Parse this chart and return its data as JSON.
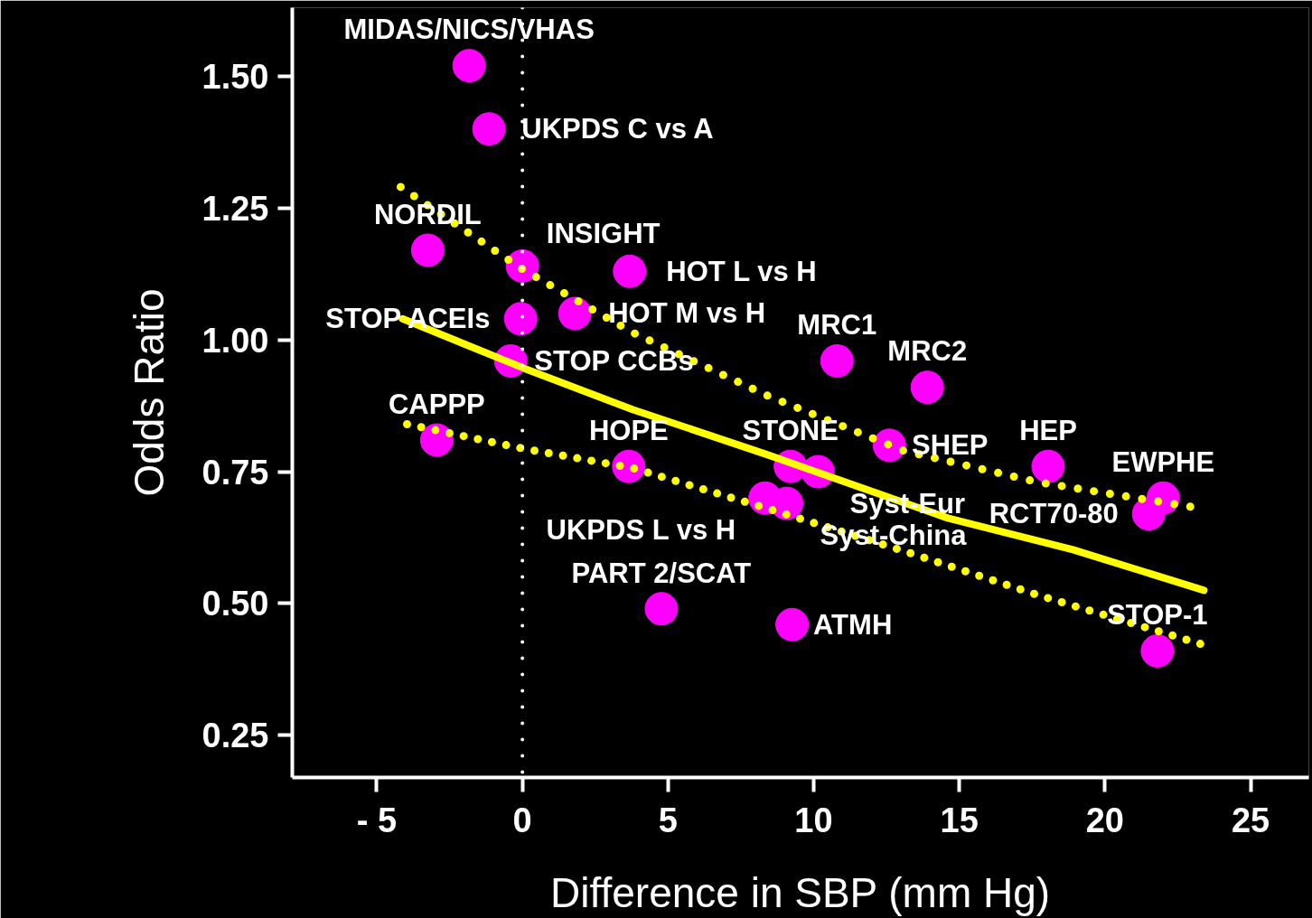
{
  "chart_data": {
    "type": "scatter",
    "xlabel": "Difference in SBP (mm Hg)",
    "ylabel": "Odds Ratio",
    "xlim": [
      -7.9,
      27.0
    ],
    "ylim": [
      0.17,
      1.63
    ],
    "xticks": [
      {
        "value": -5,
        "label": "- 5"
      },
      0,
      5,
      10,
      15,
      20,
      25
    ],
    "yticks": [
      {
        "value": 0.25,
        "label": "0.25"
      },
      {
        "value": 0.5,
        "label": "0.50"
      },
      {
        "value": 0.75,
        "label": "0.75"
      },
      {
        "value": 1.0,
        "label": "1.00"
      },
      {
        "value": 1.25,
        "label": "1.25"
      },
      {
        "value": 1.5,
        "label": "1.50"
      }
    ],
    "grid": false,
    "series": [
      {
        "color": "#ff00ff",
        "marker": "circle",
        "x": [
          -1.83,
          -1.15,
          -3.25,
          0,
          3.68,
          -0.06,
          1.8,
          -0.4,
          10.8,
          13.9,
          -2.94,
          3.65,
          9.2,
          10.15,
          12.6,
          18.05,
          8.33,
          9.07,
          22.0,
          21.5,
          4.77,
          9.26,
          21.8
        ],
        "values": [
          1.52,
          1.4,
          1.17,
          1.14,
          1.13,
          1.04,
          1.05,
          0.96,
          0.96,
          0.91,
          0.81,
          0.76,
          0.76,
          0.75,
          0.8,
          0.76,
          0.7,
          0.69,
          0.7,
          0.67,
          0.49,
          0.46,
          0.41
        ]
      },
      {
        "type": "line",
        "color": "#ffff00",
        "line_style": "solid",
        "x": [
          -4.12,
          0.06,
          3.78,
          8.42,
          14.6,
          18.9,
          23.4
        ],
        "values": [
          1.04,
          0.946,
          0.868,
          0.782,
          0.662,
          0.602,
          0.525
        ]
      },
      {
        "type": "line",
        "color": "#ffff00",
        "line_style": "dotted",
        "x": [
          -4.18,
          0,
          3.78,
          8.42,
          13.07,
          17.7,
          23.0
        ],
        "values": [
          1.29,
          1.134,
          1.014,
          0.894,
          0.79,
          0.73,
          0.683
        ]
      },
      {
        "type": "line",
        "color": "#ffff00",
        "line_style": "dotted",
        "x": [
          -3.96,
          0,
          3.78,
          8.42,
          13.07,
          17.7,
          23.3
        ],
        "values": [
          0.84,
          0.794,
          0.757,
          0.68,
          0.6,
          0.516,
          0.423
        ]
      }
    ],
    "ref_lines": [
      {
        "axis": "x",
        "value": 0,
        "color": "#ffffff",
        "line_style": "dotted"
      }
    ],
    "annotations": [
      {
        "text": "MIDAS/NICS/VHAS",
        "x": -1.83,
        "y": 1.52
      },
      {
        "text": "UKPDS C vs A",
        "x": -1.15,
        "y": 1.4
      },
      {
        "text": "NORDIL",
        "x": -3.25,
        "y": 1.17
      },
      {
        "text": "INSIGHT",
        "x": 0,
        "y": 1.14
      },
      {
        "text": "HOT L vs H",
        "x": 3.68,
        "y": 1.13
      },
      {
        "text": "STOP ACEIs",
        "x": -0.06,
        "y": 1.04
      },
      {
        "text": "HOT M vs H",
        "x": 1.8,
        "y": 1.05
      },
      {
        "text": "MRC1",
        "x": 10.8,
        "y": 0.96
      },
      {
        "text": "MRC2",
        "x": 13.9,
        "y": 0.91
      },
      {
        "text": "STOP CCBs",
        "x": -0.4,
        "y": 0.96
      },
      {
        "text": "SHEP",
        "x": 12.6,
        "y": 0.8
      },
      {
        "text": "HEP",
        "x": 18.05,
        "y": 0.76
      },
      {
        "text": "STONE",
        "x": 9.2,
        "y": 0.76
      },
      {
        "text": "HOPE",
        "x": 3.65,
        "y": 0.76
      },
      {
        "text": "EWPHE",
        "x": 22.0,
        "y": 0.7
      },
      {
        "text": "CAPPP",
        "x": -2.94,
        "y": 0.81
      },
      {
        "text": "Syst-Eur",
        "x": 10.15,
        "y": 0.75
      },
      {
        "text": "UKPDS L vs H",
        "x": 8.33,
        "y": 0.7
      },
      {
        "text": "Syst-China",
        "x": 9.07,
        "y": 0.69
      },
      {
        "text": "RCT70-80",
        "x": 21.5,
        "y": 0.67
      },
      {
        "text": "PART 2/SCAT",
        "x": 4.77,
        "y": 0.49
      },
      {
        "text": "ATMH",
        "x": 9.26,
        "y": 0.46
      },
      {
        "text": "STOP-1",
        "x": 21.8,
        "y": 0.41
      }
    ]
  }
}
